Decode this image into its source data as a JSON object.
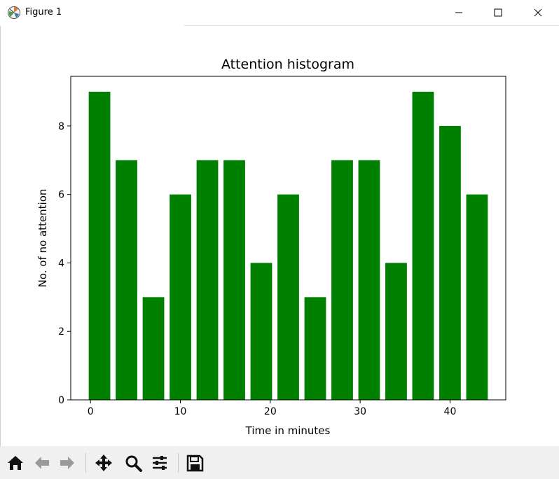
{
  "window": {
    "title": "Figure 1"
  },
  "colors": {
    "bar": "#008000",
    "axis": "#000000",
    "toolbar_bg": "#f0f0f0"
  },
  "toolbar": {
    "buttons": [
      {
        "name": "home-icon"
      },
      {
        "name": "back-icon"
      },
      {
        "name": "forward-icon"
      },
      {
        "name": "pan-icon"
      },
      {
        "name": "zoom-icon"
      },
      {
        "name": "configure-subplots-icon"
      },
      {
        "name": "save-icon"
      }
    ]
  },
  "chart_data": {
    "type": "bar",
    "title": "Attention histogram",
    "xlabel": "Time in minutes",
    "ylabel": "No. of no attention",
    "x": [
      1,
      4,
      7,
      10,
      13,
      16,
      19,
      22,
      25,
      28,
      31,
      34,
      37,
      40,
      43
    ],
    "values": [
      9,
      7,
      3,
      6,
      7,
      7,
      4,
      6,
      3,
      7,
      7,
      4,
      9,
      8,
      6
    ],
    "bar_width": 2.4,
    "xlim": [
      -2.2,
      46.2
    ],
    "ylim": [
      0,
      9.45
    ],
    "xticks": [
      0,
      10,
      20,
      30,
      40
    ],
    "yticks": [
      0,
      2,
      4,
      6,
      8
    ],
    "grid": false,
    "legend": "none"
  }
}
